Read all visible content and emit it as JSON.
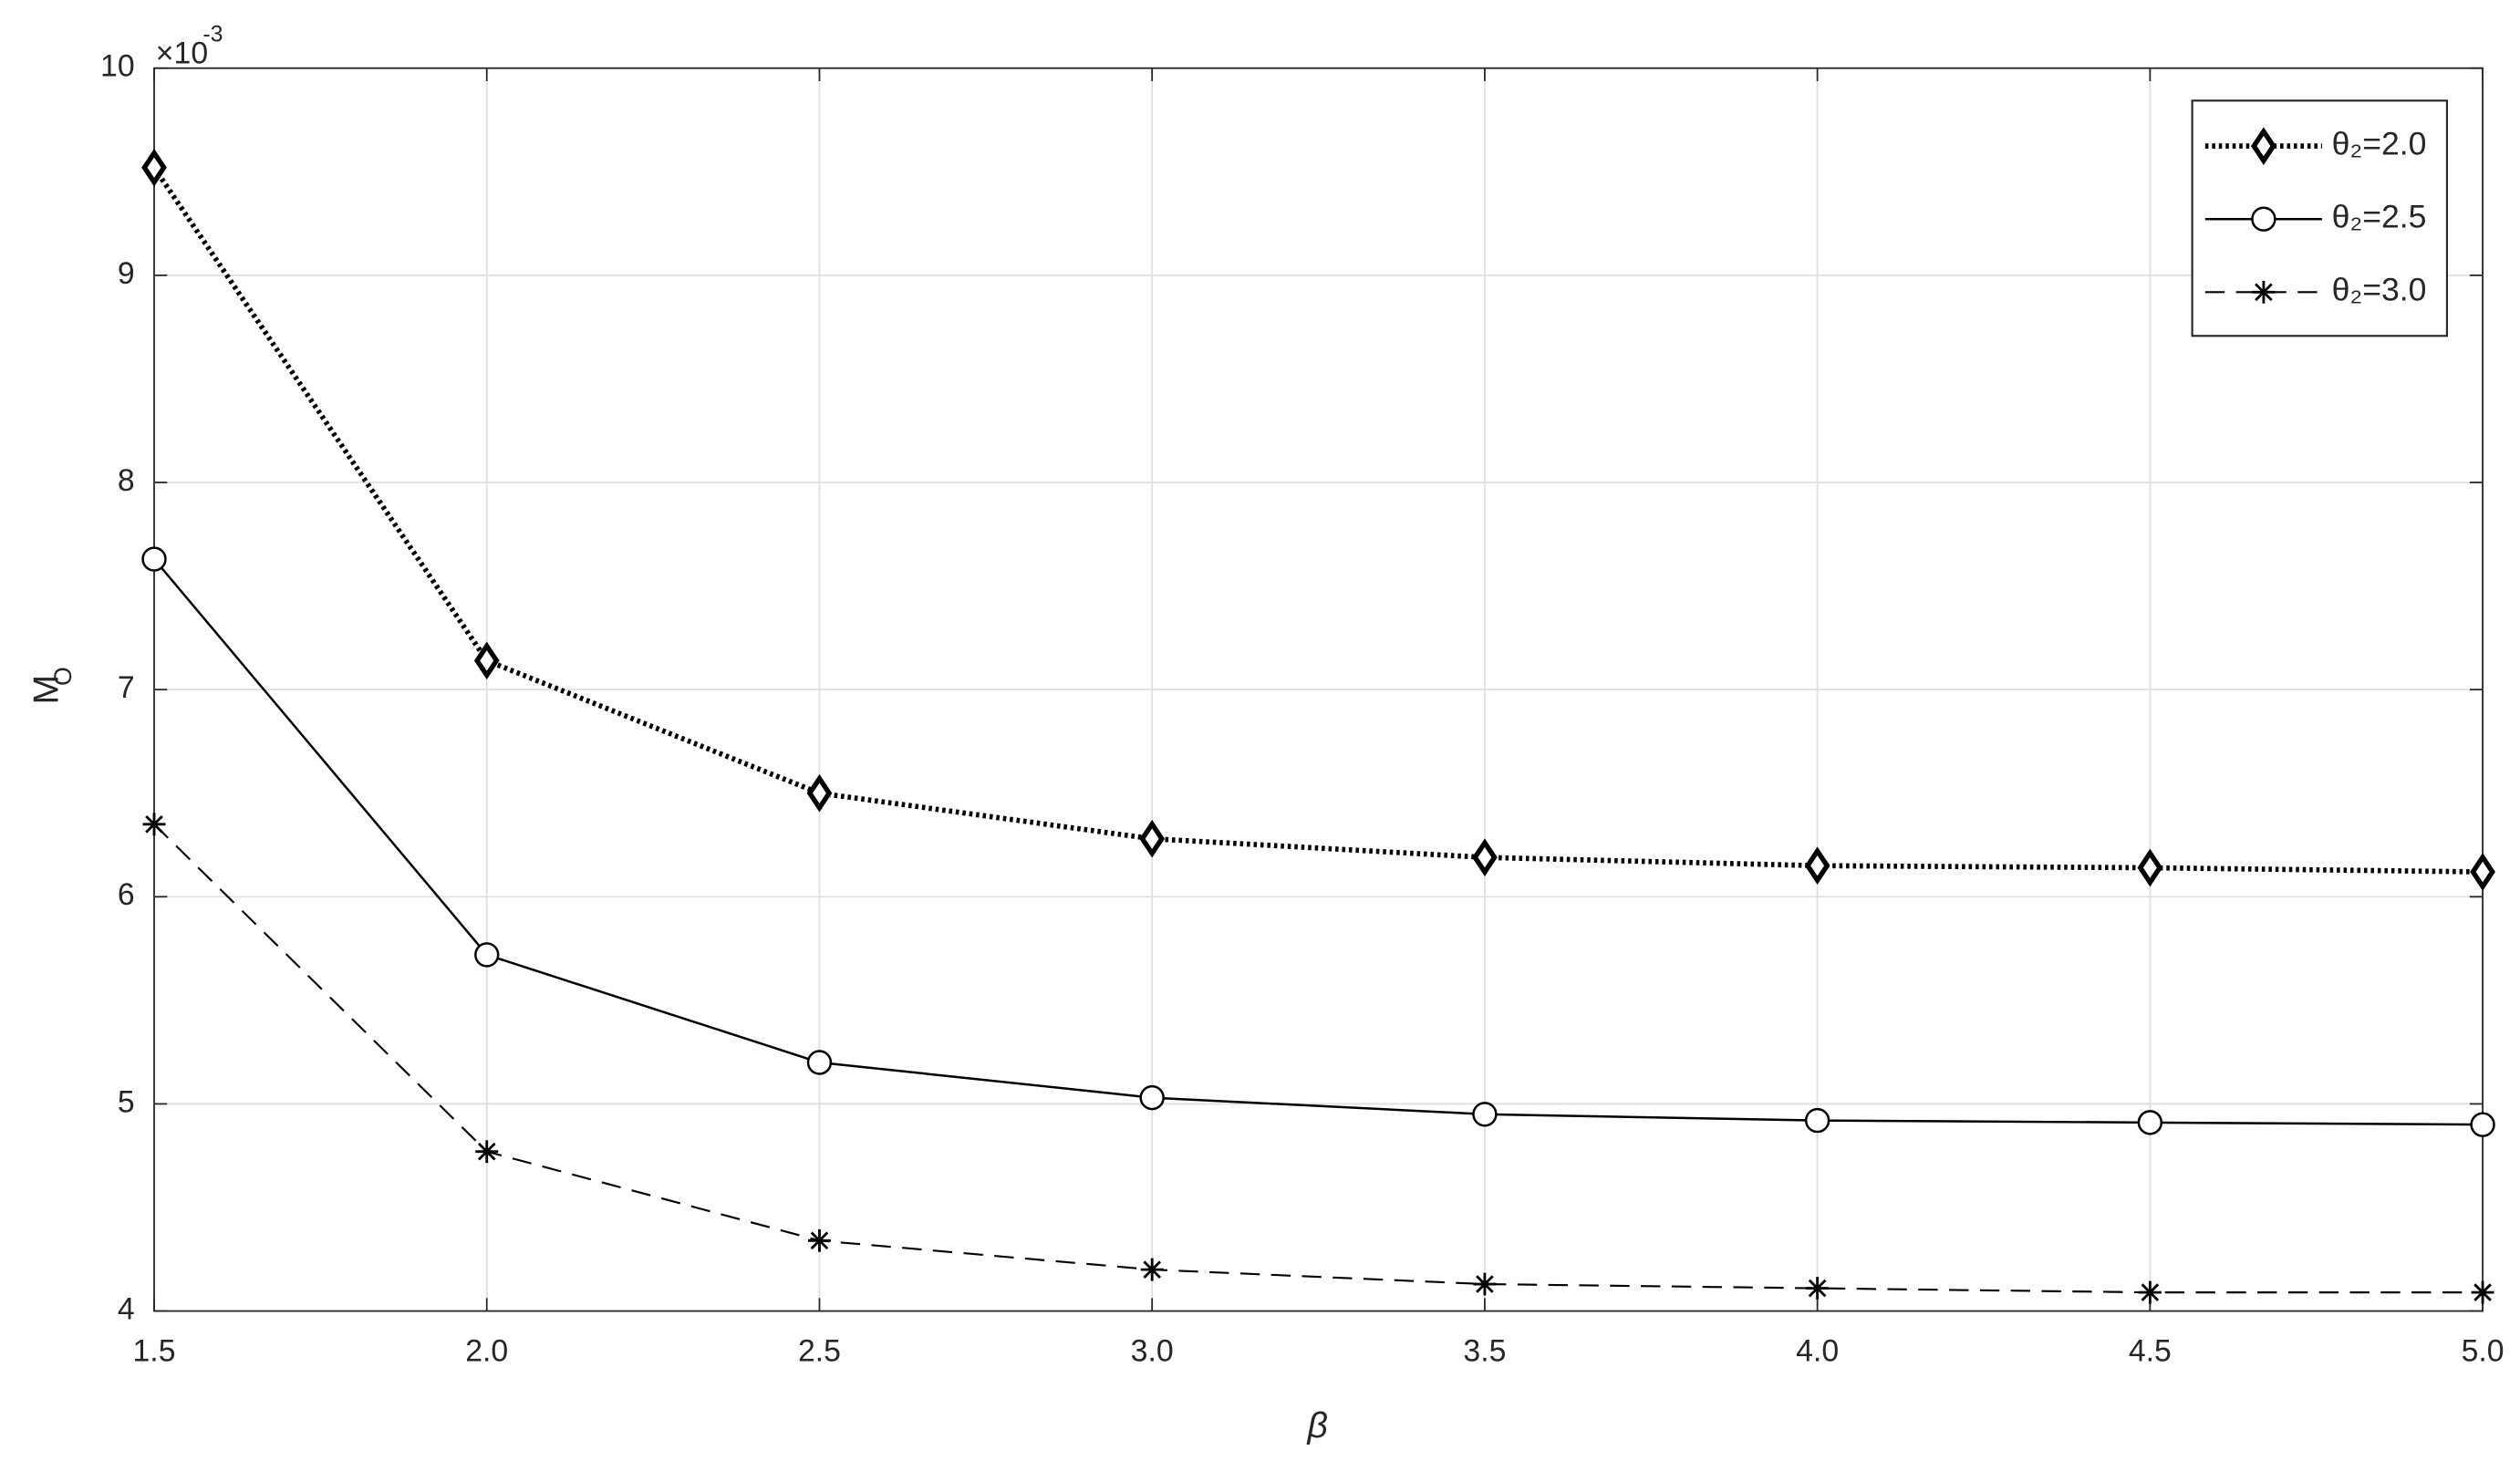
{
  "chart_data": {
    "type": "line",
    "xlabel": "β",
    "ylabel": "M",
    "ylabel_subscript": "O",
    "y_multiplier": {
      "base": "×10",
      "exponent": "-3"
    },
    "x": [
      1.5,
      2.0,
      2.5,
      3.0,
      3.5,
      4.0,
      4.5,
      5.0
    ],
    "series": [
      {
        "name": "θ₂=2.0",
        "color": "#000000",
        "dash": "dotted",
        "marker": "diamond",
        "values": [
          9.52,
          7.14,
          6.5,
          6.28,
          6.19,
          6.15,
          6.14,
          6.12
        ]
      },
      {
        "name": "θ₂=2.5",
        "color": "#000000",
        "dash": "solid",
        "marker": "circle",
        "values": [
          7.63,
          5.72,
          5.2,
          5.03,
          4.95,
          4.92,
          4.91,
          4.9
        ]
      },
      {
        "name": "θ₂=3.0",
        "color": "#000000",
        "dash": "dashed",
        "marker": "asterisk",
        "values": [
          6.35,
          4.77,
          4.34,
          4.2,
          4.13,
          4.11,
          4.09,
          4.09
        ]
      }
    ],
    "xlim": [
      1.5,
      5.0
    ],
    "xticks": [
      {
        "value": 1.5,
        "label": "1.5"
      },
      {
        "value": 2,
        "label": "2.0"
      },
      {
        "value": 2.5,
        "label": "2.5"
      },
      {
        "value": 3,
        "label": "3.0"
      },
      {
        "value": 3.5,
        "label": "3.5"
      },
      {
        "value": 4,
        "label": "4.0"
      },
      {
        "value": 4.5,
        "label": "4.5"
      },
      {
        "value": 5,
        "label": "5.0"
      }
    ],
    "ylim": [
      4,
      10
    ],
    "yticks": [
      4,
      5,
      6,
      7,
      8,
      9,
      10
    ],
    "grid": true,
    "legend": "northeast"
  }
}
